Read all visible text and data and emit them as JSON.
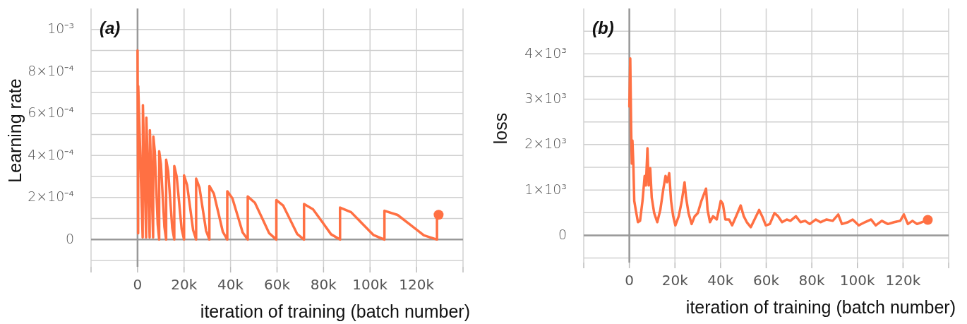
{
  "chart_data": [
    {
      "type": "line",
      "xlabel": "iteration of training (batch number)",
      "ylabel": "Learning rate",
      "annotations": [
        "(a)"
      ],
      "grid": true,
      "xlim": [
        -20000,
        140000
      ],
      "xticks": [
        {
          "value": -20000,
          "label": null
        },
        0,
        {
          "value": 20000,
          "label": "20k"
        },
        {
          "value": 40000,
          "label": "40k"
        },
        {
          "value": 60000,
          "label": "60k"
        },
        {
          "value": 80000,
          "label": "80k"
        },
        {
          "value": 100000,
          "label": "100k"
        },
        {
          "value": 120000,
          "label": "120k"
        },
        {
          "value": 140000,
          "label": null
        }
      ],
      "ylim": [
        -0.00013,
        0.0011
      ],
      "yticks": [
        {
          "value": -0.0001,
          "label": null
        },
        0,
        {
          "value": 0.0001,
          "label": null
        },
        {
          "value": 0.0002,
          "label": "2×10⁻⁴"
        },
        {
          "value": 0.0003,
          "label": null
        },
        {
          "value": 0.0004,
          "label": "4×10⁻⁴"
        },
        {
          "value": 0.0005,
          "label": null
        },
        {
          "value": 0.0006,
          "label": "6×10⁻⁴"
        },
        {
          "value": 0.0007,
          "label": null
        },
        {
          "value": 0.0008,
          "label": "8×10⁻⁴"
        },
        {
          "value": 0.0009,
          "label": null
        },
        {
          "value": 0.001,
          "label": "10⁻³"
        }
      ],
      "series": [
        {
          "type": "line",
          "color": "#ff7043",
          "x": [
            0,
            250,
            300,
            2200,
            2300,
            3700,
            3800,
            5200,
            5300,
            6700,
            6800,
            7425,
            8050,
            8675,
            9300,
            9300,
            10050,
            10800,
            11550,
            12300,
            12300,
            13175,
            14050,
            14925,
            15800,
            15800,
            16850,
            17900,
            18950,
            20000,
            20000,
            21300,
            22600,
            23900,
            25200,
            25200,
            26625,
            28050,
            29475,
            30900,
            30900,
            32825,
            34750,
            36675,
            38600,
            38600,
            40800,
            43000,
            45200,
            47400,
            47400,
            50475,
            53550,
            56625,
            59700,
            59700,
            62675,
            65650,
            68625,
            71600,
            71600,
            75475,
            79350,
            83225,
            87100,
            87100,
            91875,
            96650,
            101425,
            106200,
            106200,
            111850,
            117500,
            123150,
            128800,
            128800,
            129500
          ],
          "values": [
            0.0009,
            3e-05,
            0.00073,
            1e-05,
            0.00064,
            1e-05,
            0.00058,
            1e-05,
            0.00052,
            1e-05,
            0.00049,
            0.000418,
            0.000245,
            7.2e-05,
            0,
            0.00042,
            0.000359,
            0.00021,
            6.1e-05,
            0,
            0.00038,
            0.000325,
            0.00019,
            5.5e-05,
            0,
            0.00035,
            0.000299,
            0.000175,
            5.1e-05,
            0,
            0.000305,
            0.00026,
            0.000153,
            4.5e-05,
            0,
            0.00029,
            0.000248,
            0.000145,
            4.2e-05,
            0,
            0.000255,
            0.000218,
            0.000128,
            3.7e-05,
            0,
            0.00023,
            0.000196,
            0.000115,
            3.4e-05,
            0,
            0.000205,
            0.000175,
            0.000103,
            3e-05,
            0,
            0.000188,
            0.000161,
            9.4e-05,
            2.7e-05,
            0,
            0.000169,
            0.000144,
            8.5e-05,
            2.5e-05,
            0,
            0.000152,
            0.00013,
            7.6e-05,
            2.2e-05,
            0,
            0.000137,
            0.000117,
            6.9e-05,
            2e-05,
            0,
            0.000118,
            0.000118
          ]
        },
        {
          "type": "scatter",
          "color": "#ff7043",
          "marker": "circle",
          "x": [
            129500
          ],
          "values": [
            0.000118
          ]
        }
      ]
    },
    {
      "type": "line",
      "xlabel": "iteration of training (batch number)",
      "ylabel": "loss",
      "annotations": [
        "(b)"
      ],
      "grid": true,
      "xlim": [
        -20000,
        140000
      ],
      "xticks": [
        {
          "value": -20000,
          "label": null
        },
        0,
        {
          "value": 20000,
          "label": "20k"
        },
        {
          "value": 40000,
          "label": "40k"
        },
        {
          "value": 60000,
          "label": "60k"
        },
        {
          "value": 80000,
          "label": "80k"
        },
        {
          "value": 100000,
          "label": "100k"
        },
        {
          "value": 120000,
          "label": "120k"
        },
        {
          "value": 140000,
          "label": null
        }
      ],
      "ylim": [
        -600,
        5000
      ],
      "yticks": [
        {
          "value": -500,
          "label": null
        },
        0,
        {
          "value": 500,
          "label": null
        },
        {
          "value": 1000,
          "label": "1×10³"
        },
        {
          "value": 1500,
          "label": null
        },
        {
          "value": 2000,
          "label": "2×10³"
        },
        {
          "value": 2500,
          "label": null
        },
        {
          "value": 3000,
          "label": "3×10³"
        },
        {
          "value": 3500,
          "label": null
        },
        {
          "value": 4000,
          "label": "4×10³"
        },
        {
          "value": 4500,
          "label": null
        }
      ],
      "series": [
        {
          "type": "line",
          "color": "#ff7043",
          "x": [
            0,
            400,
            800,
            1080,
            1350,
            1750,
            2150,
            2820,
            3770,
            4700,
            5780,
            6720,
            7260,
            7940,
            8470,
            9150,
            9820,
            10900,
            12240,
            13580,
            14930,
            15870,
            16540,
            17480,
            18290,
            19230,
            20170,
            21650,
            23000,
            24210,
            24880,
            25960,
            27300,
            28650,
            29990,
            31600,
            33620,
            34300,
            35370,
            36720,
            38330,
            40080,
            41020,
            42100,
            43710,
            45060,
            46800,
            48820,
            50170,
            51510,
            53260,
            54880,
            56900,
            58240,
            59850,
            61600,
            63620,
            65230,
            66980,
            69000,
            70610,
            73030,
            75050,
            77070,
            79080,
            81770,
            83790,
            86480,
            89170,
            91590,
            93200,
            95900,
            97910,
            100600,
            103290,
            105980,
            108000,
            110690,
            113380,
            116070,
            118760,
            120370,
            122120,
            124140,
            126150,
            128170,
            130860
          ],
          "values": [
            2840,
            3900,
            2330,
            1580,
            2090,
            1580,
            760,
            560,
            290,
            320,
            760,
            1310,
            1100,
            1920,
            1100,
            1480,
            830,
            490,
            290,
            560,
            1030,
            1310,
            1170,
            1370,
            760,
            420,
            220,
            420,
            760,
            1170,
            830,
            490,
            250,
            420,
            490,
            760,
            1030,
            560,
            290,
            420,
            350,
            760,
            690,
            350,
            350,
            220,
            420,
            660,
            420,
            290,
            180,
            350,
            560,
            420,
            220,
            250,
            490,
            420,
            290,
            350,
            320,
            420,
            290,
            320,
            250,
            350,
            290,
            350,
            320,
            460,
            250,
            290,
            350,
            220,
            290,
            350,
            220,
            320,
            250,
            290,
            320,
            460,
            250,
            320,
            250,
            290,
            340
          ]
        },
        {
          "type": "scatter",
          "color": "#ff7043",
          "marker": "circle",
          "x": [
            130860
          ],
          "values": [
            340
          ]
        }
      ]
    }
  ]
}
